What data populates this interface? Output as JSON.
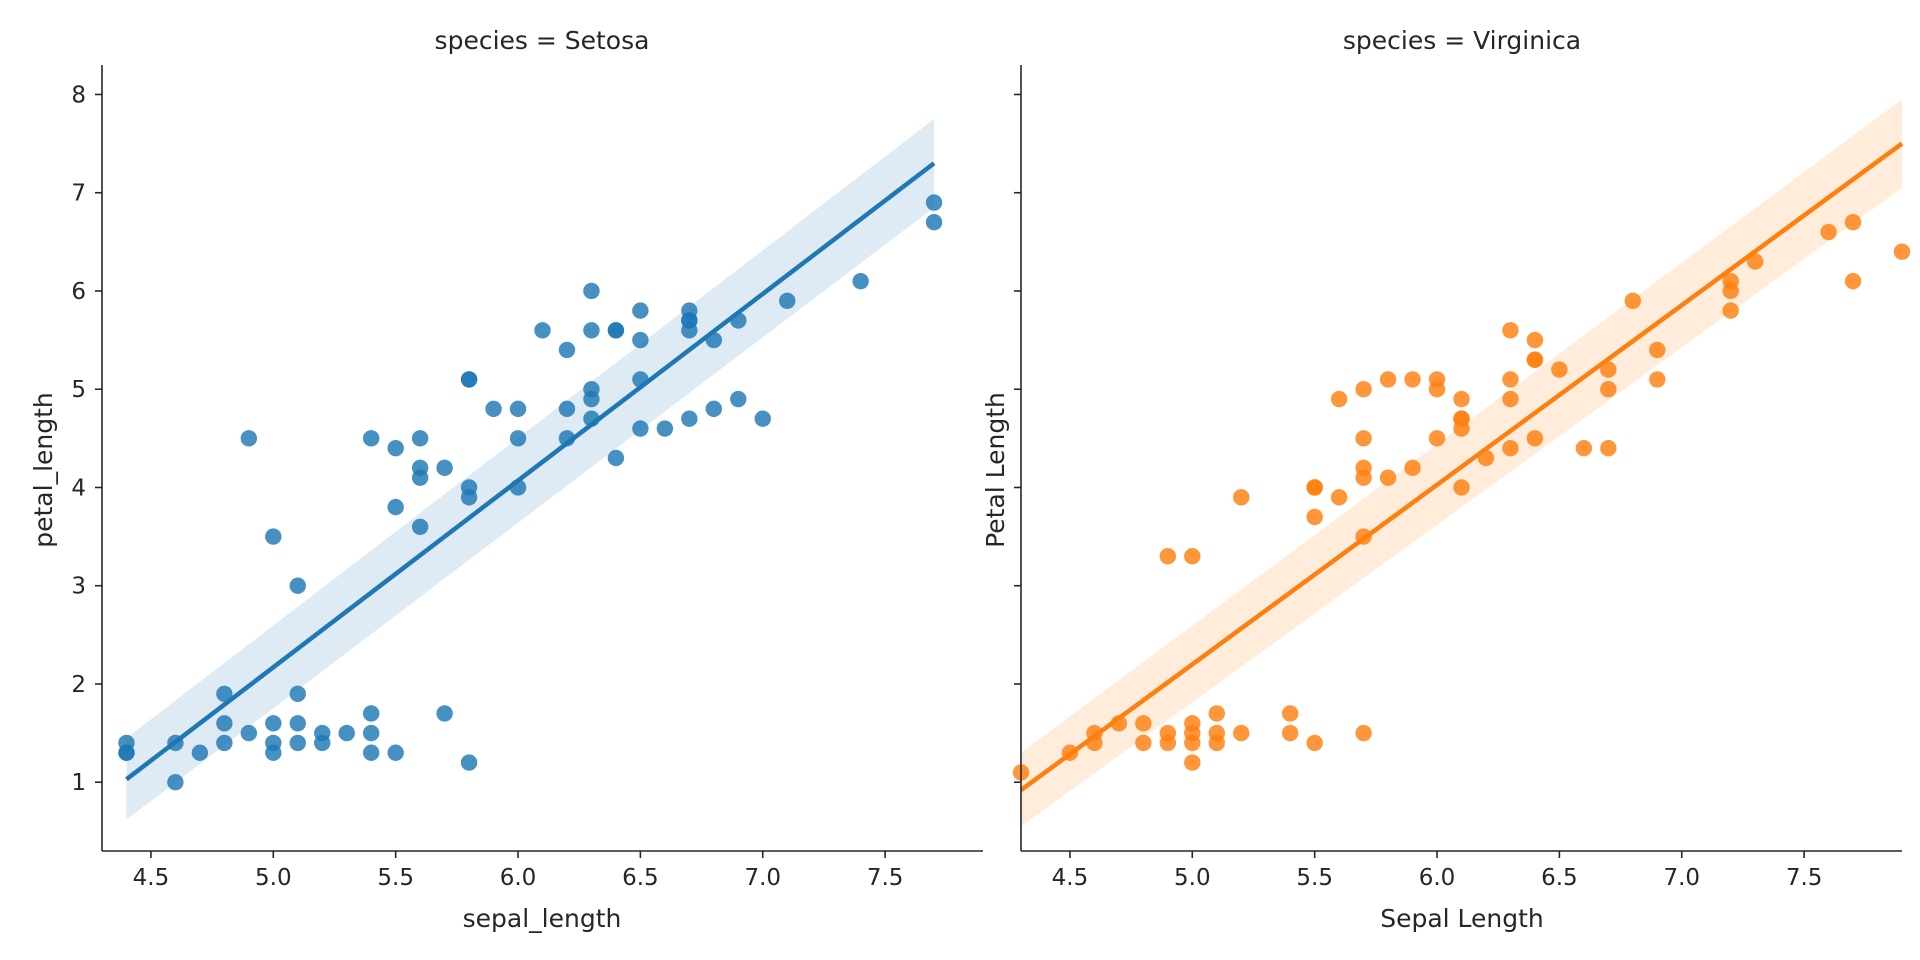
{
  "chart_data": [
    {
      "type": "scatter",
      "title": "species = Setosa",
      "xlabel": "sepal_length",
      "ylabel": "petal_length",
      "xlim": [
        4.3,
        7.9
      ],
      "ylim": [
        0.3,
        8.3
      ],
      "xticks": [
        "4.5",
        "5.0",
        "5.5",
        "6.0",
        "6.5",
        "7.0",
        "7.5"
      ],
      "yticks": [
        "1",
        "2",
        "3",
        "4",
        "5",
        "6",
        "7",
        "8"
      ],
      "color": "#1f77b4",
      "fit": {
        "x": [
          4.4,
          7.7
        ],
        "y": [
          1.03,
          7.3
        ],
        "band_lower": [
          0.62,
          6.85
        ],
        "band_upper": [
          1.45,
          7.75
        ]
      },
      "points": [
        [
          4.4,
          1.4
        ],
        [
          4.4,
          1.3
        ],
        [
          4.4,
          1.3
        ],
        [
          4.6,
          1.4
        ],
        [
          4.6,
          1.0
        ],
        [
          4.7,
          1.3
        ],
        [
          4.8,
          1.9
        ],
        [
          4.8,
          1.6
        ],
        [
          4.8,
          1.4
        ],
        [
          4.9,
          1.5
        ],
        [
          4.9,
          4.5
        ],
        [
          5.0,
          1.6
        ],
        [
          5.0,
          1.4
        ],
        [
          5.0,
          1.3
        ],
        [
          5.0,
          3.5
        ],
        [
          5.1,
          1.9
        ],
        [
          5.1,
          1.6
        ],
        [
          5.1,
          1.4
        ],
        [
          5.1,
          3.0
        ],
        [
          5.2,
          1.5
        ],
        [
          5.2,
          1.4
        ],
        [
          5.3,
          1.5
        ],
        [
          5.4,
          1.7
        ],
        [
          5.4,
          1.5
        ],
        [
          5.4,
          1.3
        ],
        [
          5.4,
          4.5
        ],
        [
          5.5,
          1.3
        ],
        [
          5.5,
          4.4
        ],
        [
          5.5,
          3.8
        ],
        [
          5.6,
          4.5
        ],
        [
          5.6,
          4.2
        ],
        [
          5.6,
          4.1
        ],
        [
          5.6,
          3.6
        ],
        [
          5.7,
          4.2
        ],
        [
          5.7,
          1.7
        ],
        [
          5.8,
          5.1
        ],
        [
          5.8,
          5.1
        ],
        [
          5.8,
          4.0
        ],
        [
          5.8,
          3.9
        ],
        [
          5.8,
          1.2
        ],
        [
          5.9,
          4.8
        ],
        [
          6.0,
          4.8
        ],
        [
          6.0,
          4.5
        ],
        [
          6.0,
          4.0
        ],
        [
          6.1,
          5.6
        ],
        [
          6.2,
          5.4
        ],
        [
          6.2,
          4.8
        ],
        [
          6.2,
          4.5
        ],
        [
          6.3,
          6.0
        ],
        [
          6.3,
          5.6
        ],
        [
          6.3,
          5.0
        ],
        [
          6.3,
          4.9
        ],
        [
          6.3,
          4.7
        ],
        [
          6.4,
          5.6
        ],
        [
          6.4,
          5.6
        ],
        [
          6.4,
          4.3
        ],
        [
          6.5,
          5.8
        ],
        [
          6.5,
          5.5
        ],
        [
          6.5,
          5.1
        ],
        [
          6.5,
          4.6
        ],
        [
          6.6,
          4.6
        ],
        [
          6.7,
          5.8
        ],
        [
          6.7,
          5.7
        ],
        [
          6.7,
          5.7
        ],
        [
          6.7,
          5.6
        ],
        [
          6.7,
          4.7
        ],
        [
          6.8,
          5.5
        ],
        [
          6.8,
          4.8
        ],
        [
          6.9,
          5.7
        ],
        [
          6.9,
          4.9
        ],
        [
          7.0,
          4.7
        ],
        [
          7.1,
          5.9
        ],
        [
          7.4,
          6.1
        ],
        [
          7.7,
          6.9
        ],
        [
          7.7,
          6.7
        ]
      ]
    },
    {
      "type": "scatter",
      "title": "species = Virginica",
      "xlabel": "Sepal Length",
      "ylabel": "Petal Length",
      "xlim": [
        4.3,
        7.9
      ],
      "ylim": [
        0.3,
        8.3
      ],
      "xticks": [
        "4.5",
        "5.0",
        "5.5",
        "6.0",
        "6.5",
        "7.0",
        "7.5"
      ],
      "yticks": [],
      "color": "#ff7f0e",
      "fit": {
        "x": [
          4.3,
          7.9
        ],
        "y": [
          0.92,
          7.5
        ],
        "band_lower": [
          0.55,
          7.05
        ],
        "band_upper": [
          1.3,
          7.95
        ]
      },
      "points": [
        [
          4.3,
          1.1
        ],
        [
          4.5,
          1.3
        ],
        [
          4.6,
          1.5
        ],
        [
          4.6,
          1.4
        ],
        [
          4.7,
          1.6
        ],
        [
          4.8,
          1.6
        ],
        [
          4.8,
          1.4
        ],
        [
          4.9,
          1.5
        ],
        [
          4.9,
          1.4
        ],
        [
          4.9,
          3.3
        ],
        [
          5.0,
          1.6
        ],
        [
          5.0,
          1.5
        ],
        [
          5.0,
          1.4
        ],
        [
          5.0,
          1.2
        ],
        [
          5.0,
          3.3
        ],
        [
          5.1,
          1.7
        ],
        [
          5.1,
          1.5
        ],
        [
          5.1,
          1.4
        ],
        [
          5.2,
          1.5
        ],
        [
          5.2,
          3.9
        ],
        [
          5.4,
          1.7
        ],
        [
          5.4,
          1.5
        ],
        [
          5.5,
          1.4
        ],
        [
          5.5,
          4.0
        ],
        [
          5.5,
          4.0
        ],
        [
          5.5,
          3.7
        ],
        [
          5.6,
          4.9
        ],
        [
          5.6,
          3.9
        ],
        [
          5.7,
          5.0
        ],
        [
          5.7,
          4.5
        ],
        [
          5.7,
          4.2
        ],
        [
          5.7,
          4.1
        ],
        [
          5.7,
          3.5
        ],
        [
          5.7,
          1.5
        ],
        [
          5.8,
          5.1
        ],
        [
          5.8,
          4.1
        ],
        [
          5.9,
          5.1
        ],
        [
          5.9,
          4.2
        ],
        [
          6.0,
          5.1
        ],
        [
          6.0,
          5.0
        ],
        [
          6.0,
          4.5
        ],
        [
          6.1,
          4.9
        ],
        [
          6.1,
          4.7
        ],
        [
          6.1,
          4.7
        ],
        [
          6.1,
          4.6
        ],
        [
          6.1,
          4.0
        ],
        [
          6.2,
          4.3
        ],
        [
          6.3,
          5.6
        ],
        [
          6.3,
          5.1
        ],
        [
          6.3,
          4.9
        ],
        [
          6.3,
          4.4
        ],
        [
          6.4,
          5.5
        ],
        [
          6.4,
          5.3
        ],
        [
          6.4,
          5.3
        ],
        [
          6.4,
          4.5
        ],
        [
          6.5,
          5.2
        ],
        [
          6.6,
          4.4
        ],
        [
          6.7,
          5.2
        ],
        [
          6.7,
          5.0
        ],
        [
          6.7,
          4.4
        ],
        [
          6.8,
          5.9
        ],
        [
          6.9,
          5.4
        ],
        [
          6.9,
          5.1
        ],
        [
          7.2,
          6.1
        ],
        [
          7.2,
          6.0
        ],
        [
          7.2,
          5.8
        ],
        [
          7.3,
          6.3
        ],
        [
          7.6,
          6.6
        ],
        [
          7.7,
          6.7
        ],
        [
          7.7,
          6.1
        ],
        [
          7.9,
          6.4
        ]
      ]
    }
  ]
}
